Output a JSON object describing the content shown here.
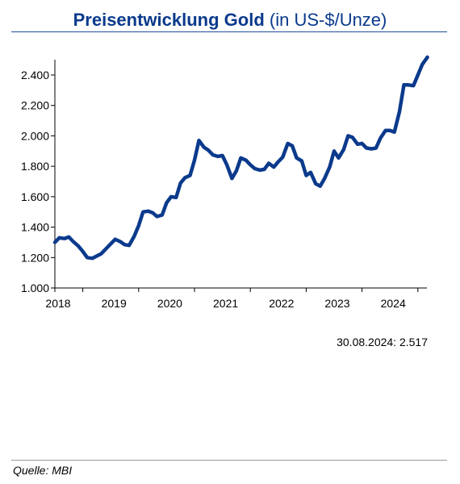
{
  "header": {
    "title_bold": "Preisentwicklung Gold",
    "title_unit": "(in US-$/Unze)"
  },
  "annotation": "30.08.2024: 2.517",
  "source": "Quelle: MBI",
  "colors": {
    "line": "#0b3a8c",
    "title": "#0b3a8c",
    "axis": "#000000"
  },
  "chart_data": {
    "type": "line",
    "title": "Preisentwicklung Gold (in US-$/Unze)",
    "xlabel": "",
    "ylabel": "",
    "xlim": [
      2018.0,
      2024.67
    ],
    "ylim": [
      1000,
      2500
    ],
    "yticks": [
      1000,
      1200,
      1400,
      1600,
      1800,
      2000,
      2200,
      2400
    ],
    "ytick_labels": [
      "1.000",
      "1.200",
      "1.400",
      "1.600",
      "1.800",
      "2.000",
      "2.200",
      "2.400"
    ],
    "xticks": [
      2018,
      2019,
      2020,
      2021,
      2022,
      2023,
      2024
    ],
    "xtick_labels": [
      "2018",
      "2019",
      "2020",
      "2021",
      "2022",
      "2023",
      "2024"
    ],
    "grid": false,
    "legend": "none",
    "series": [
      {
        "x": [
          2018.0,
          2018.08,
          2018.17,
          2018.25,
          2018.33,
          2018.42,
          2018.5,
          2018.58,
          2018.67,
          2018.75,
          2018.83,
          2018.92,
          2019.0,
          2019.08,
          2019.17,
          2019.25,
          2019.33,
          2019.42,
          2019.5,
          2019.58,
          2019.67,
          2019.75,
          2019.83,
          2019.92,
          2020.0,
          2020.08,
          2020.17,
          2020.25,
          2020.33,
          2020.42,
          2020.5,
          2020.58,
          2020.67,
          2020.75,
          2020.83,
          2020.92,
          2021.0,
          2021.08,
          2021.17,
          2021.25,
          2021.33,
          2021.42,
          2021.5,
          2021.58,
          2021.67,
          2021.75,
          2021.83,
          2021.92,
          2022.0,
          2022.08,
          2022.17,
          2022.25,
          2022.33,
          2022.42,
          2022.5,
          2022.58,
          2022.67,
          2022.75,
          2022.83,
          2022.92,
          2023.0,
          2023.08,
          2023.17,
          2023.25,
          2023.33,
          2023.42,
          2023.5,
          2023.58,
          2023.67,
          2023.75,
          2023.83,
          2023.92,
          2024.0,
          2024.08,
          2024.17,
          2024.25,
          2024.33,
          2024.42,
          2024.5,
          2024.58,
          2024.67
        ],
        "y": [
          1300,
          1330,
          1325,
          1335,
          1305,
          1275,
          1240,
          1200,
          1195,
          1210,
          1225,
          1260,
          1290,
          1320,
          1305,
          1285,
          1280,
          1340,
          1410,
          1500,
          1505,
          1495,
          1470,
          1480,
          1560,
          1600,
          1595,
          1690,
          1725,
          1740,
          1840,
          1970,
          1925,
          1905,
          1875,
          1865,
          1870,
          1810,
          1720,
          1770,
          1855,
          1840,
          1810,
          1785,
          1775,
          1780,
          1820,
          1795,
          1830,
          1860,
          1950,
          1935,
          1855,
          1835,
          1740,
          1760,
          1685,
          1670,
          1720,
          1795,
          1900,
          1855,
          1910,
          2000,
          1990,
          1945,
          1950,
          1920,
          1915,
          1920,
          1985,
          2035,
          2035,
          2025,
          2160,
          2335,
          2335,
          2330,
          2400,
          2470,
          2517
        ]
      }
    ]
  }
}
